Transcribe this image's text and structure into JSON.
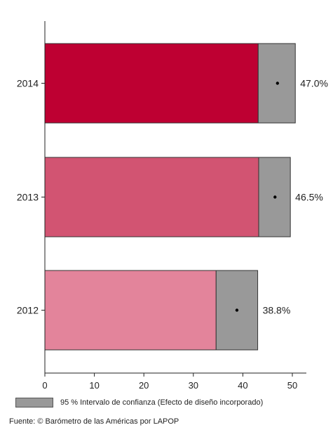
{
  "chart_data": {
    "type": "bar",
    "orientation": "horizontal",
    "categories": [
      "2014",
      "2013",
      "2012"
    ],
    "values": [
      47.0,
      46.5,
      38.8
    ],
    "ci_low": [
      43.1,
      43.2,
      34.6
    ],
    "ci_high": [
      50.6,
      49.6,
      43.0
    ],
    "value_labels": [
      "47.0%",
      "46.5%",
      "38.8%"
    ],
    "colors": [
      "#be0032",
      "#d25472",
      "#e3849b"
    ],
    "ci_color": "#999999",
    "xlim": [
      0,
      52
    ],
    "xticks": [
      "0",
      "10",
      "20",
      "30",
      "40",
      "50"
    ],
    "title": "",
    "xlabel": "",
    "ylabel": ""
  },
  "legend": {
    "label": "95 % Intervalo de confianza (Efecto de diseño incorporado)"
  },
  "source": "Fuente: © Barómetro de las Américas por LAPOP"
}
